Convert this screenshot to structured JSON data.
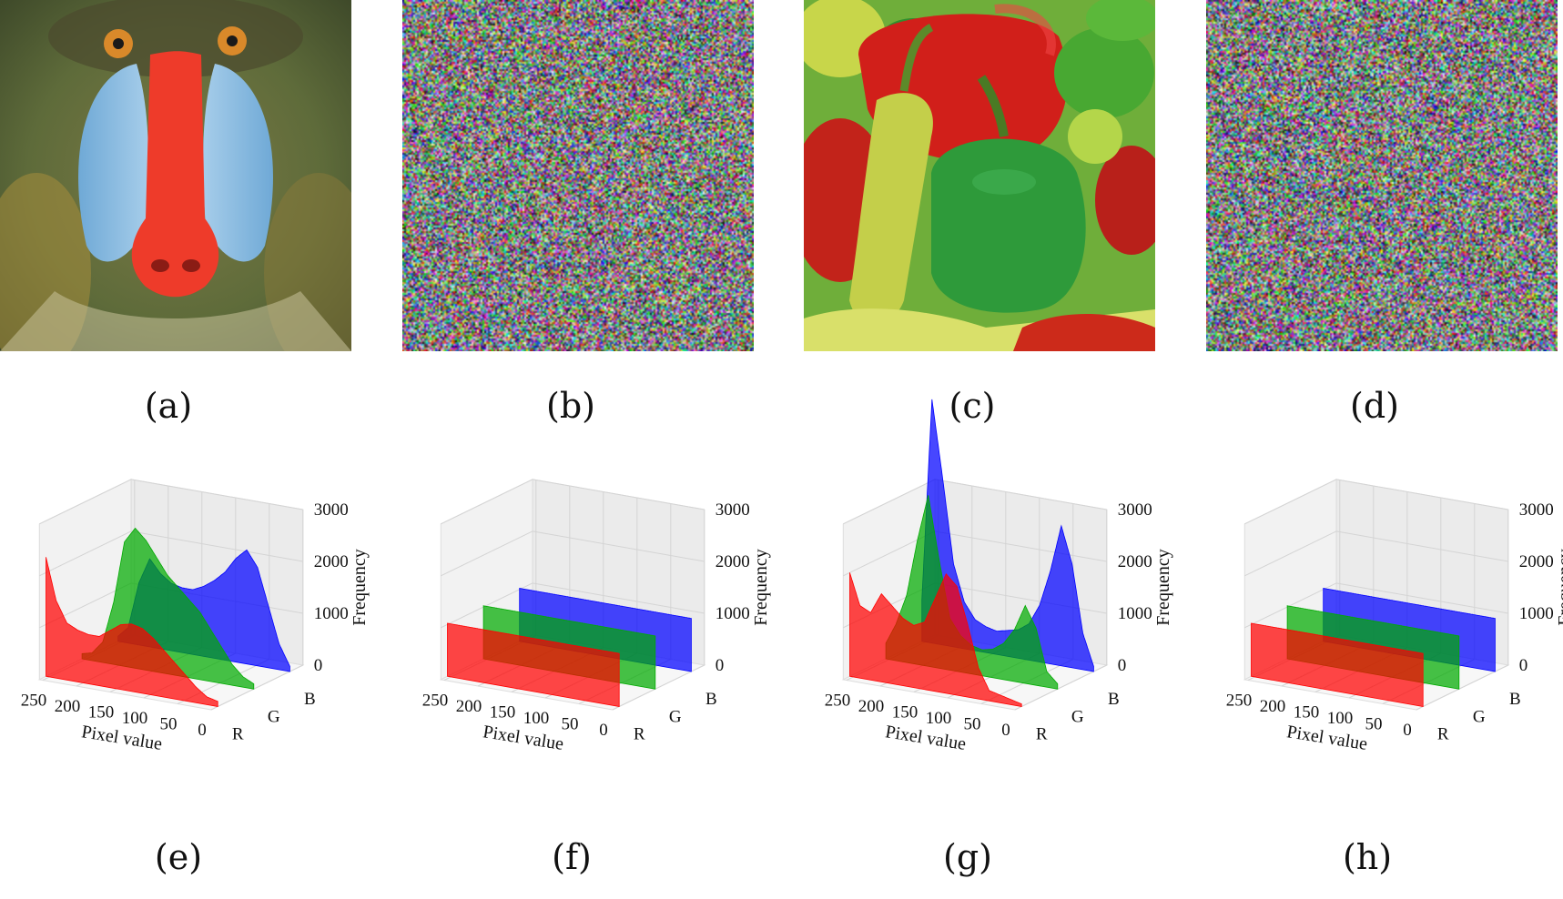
{
  "panels": {
    "a": {
      "caption": "(a)",
      "content": "mandrill-image"
    },
    "b": {
      "caption": "(b)",
      "content": "encrypted-noise-image"
    },
    "c": {
      "caption": "(c)",
      "content": "peppers-image"
    },
    "d": {
      "caption": "(d)",
      "content": "encrypted-noise-image"
    },
    "e": {
      "caption": "(e)"
    },
    "f": {
      "caption": "(f)"
    },
    "g": {
      "caption": "(g)"
    },
    "h": {
      "caption": "(h)"
    }
  },
  "chart_data": [
    {
      "panel": "e",
      "type": "bar",
      "subtype": "3d-histogram",
      "xlabel": "Pixel value",
      "ylabel": "",
      "zlabel": "Frequency",
      "x_ticks": [
        "250",
        "200",
        "150",
        "100",
        "50",
        "0"
      ],
      "y_ticks": [
        "R",
        "G",
        "B"
      ],
      "z_ticks": [
        "0",
        "1000",
        "2000",
        "3000"
      ],
      "xlim": [
        0,
        255
      ],
      "zlim": [
        0,
        3000
      ],
      "series": [
        {
          "name": "R",
          "color": "#ff0000",
          "x": [
            0,
            16,
            32,
            48,
            64,
            80,
            96,
            112,
            128,
            144,
            160,
            176,
            192,
            208,
            224,
            240,
            255
          ],
          "values": [
            100,
            150,
            300,
            500,
            700,
            900,
            1100,
            1250,
            1300,
            1250,
            1100,
            950,
            950,
            1000,
            1100,
            1500,
            2300
          ]
        },
        {
          "name": "G",
          "color": "#00aa00",
          "x": [
            0,
            16,
            32,
            48,
            64,
            80,
            96,
            112,
            128,
            144,
            160,
            176,
            192,
            208,
            224,
            240,
            255
          ],
          "values": [
            100,
            200,
            400,
            700,
            1000,
            1300,
            1500,
            1700,
            1900,
            2200,
            2500,
            2700,
            2400,
            1200,
            400,
            150,
            100
          ]
        },
        {
          "name": "B",
          "color": "#0000ff",
          "x": [
            0,
            16,
            32,
            48,
            64,
            80,
            96,
            112,
            128,
            144,
            160,
            176,
            192,
            208,
            224,
            240,
            255
          ],
          "values": [
            100,
            500,
            1200,
            1900,
            2200,
            2000,
            1700,
            1500,
            1350,
            1250,
            1250,
            1300,
            1450,
            1700,
            1200,
            300,
            100
          ]
        }
      ]
    },
    {
      "panel": "f",
      "type": "bar",
      "subtype": "3d-histogram",
      "xlabel": "Pixel value",
      "ylabel": "",
      "zlabel": "Frequency",
      "x_ticks": [
        "250",
        "200",
        "150",
        "100",
        "50",
        "0"
      ],
      "y_ticks": [
        "R",
        "G",
        "B"
      ],
      "z_ticks": [
        "0",
        "1000",
        "2000",
        "3000"
      ],
      "xlim": [
        0,
        255
      ],
      "zlim": [
        0,
        3000
      ],
      "series": [
        {
          "name": "R",
          "color": "#ff0000",
          "x": [
            0,
            255
          ],
          "values": [
            1024,
            1024
          ]
        },
        {
          "name": "G",
          "color": "#00aa00",
          "x": [
            0,
            255
          ],
          "values": [
            1024,
            1024
          ]
        },
        {
          "name": "B",
          "color": "#0000ff",
          "x": [
            0,
            255
          ],
          "values": [
            1024,
            1024
          ]
        }
      ]
    },
    {
      "panel": "g",
      "type": "bar",
      "subtype": "3d-histogram",
      "xlabel": "Pixel value",
      "ylabel": "",
      "zlabel": "Frequency",
      "x_ticks": [
        "250",
        "200",
        "150",
        "100",
        "50",
        "0"
      ],
      "y_ticks": [
        "R",
        "G",
        "B"
      ],
      "z_ticks": [
        "0",
        "1000",
        "2000",
        "3000"
      ],
      "xlim": [
        0,
        255
      ],
      "zlim": [
        0,
        3000
      ],
      "series": [
        {
          "name": "R",
          "color": "#ff0000",
          "x": [
            0,
            16,
            32,
            48,
            64,
            80,
            96,
            112,
            128,
            144,
            160,
            176,
            192,
            208,
            224,
            240,
            255
          ],
          "values": [
            50,
            100,
            150,
            200,
            600,
            1400,
            2100,
            2300,
            1800,
            1300,
            1200,
            1300,
            1500,
            1700,
            1300,
            1400,
            2000
          ]
        },
        {
          "name": "G",
          "color": "#00aa00",
          "x": [
            0,
            16,
            32,
            48,
            64,
            80,
            96,
            112,
            128,
            144,
            160,
            176,
            192,
            208,
            224,
            240,
            255
          ],
          "values": [
            100,
            300,
            1100,
            1500,
            1000,
            700,
            550,
            500,
            550,
            700,
            1000,
            2100,
            3300,
            2400,
            1300,
            700,
            300
          ]
        },
        {
          "name": "B",
          "color": "#0000ff",
          "x": [
            0,
            16,
            32,
            48,
            64,
            80,
            96,
            112,
            128,
            144,
            160,
            176,
            192,
            208,
            224,
            240,
            255
          ],
          "values": [
            100,
            700,
            2000,
            2700,
            1800,
            1100,
            700,
            550,
            500,
            450,
            500,
            600,
            900,
            1600,
            3200,
            4700,
            800
          ]
        }
      ]
    },
    {
      "panel": "h",
      "type": "bar",
      "subtype": "3d-histogram",
      "xlabel": "Pixel value",
      "ylabel": "",
      "zlabel": "Frequency",
      "x_ticks": [
        "250",
        "200",
        "150",
        "100",
        "50",
        "0"
      ],
      "y_ticks": [
        "R",
        "G",
        "B"
      ],
      "z_ticks": [
        "0",
        "1000",
        "2000",
        "3000"
      ],
      "xlim": [
        0,
        255
      ],
      "zlim": [
        0,
        3000
      ],
      "series": [
        {
          "name": "R",
          "color": "#ff0000",
          "x": [
            0,
            255
          ],
          "values": [
            1024,
            1024
          ]
        },
        {
          "name": "G",
          "color": "#00aa00",
          "x": [
            0,
            255
          ],
          "values": [
            1024,
            1024
          ]
        },
        {
          "name": "B",
          "color": "#0000ff",
          "x": [
            0,
            255
          ],
          "values": [
            1024,
            1024
          ]
        }
      ]
    }
  ]
}
